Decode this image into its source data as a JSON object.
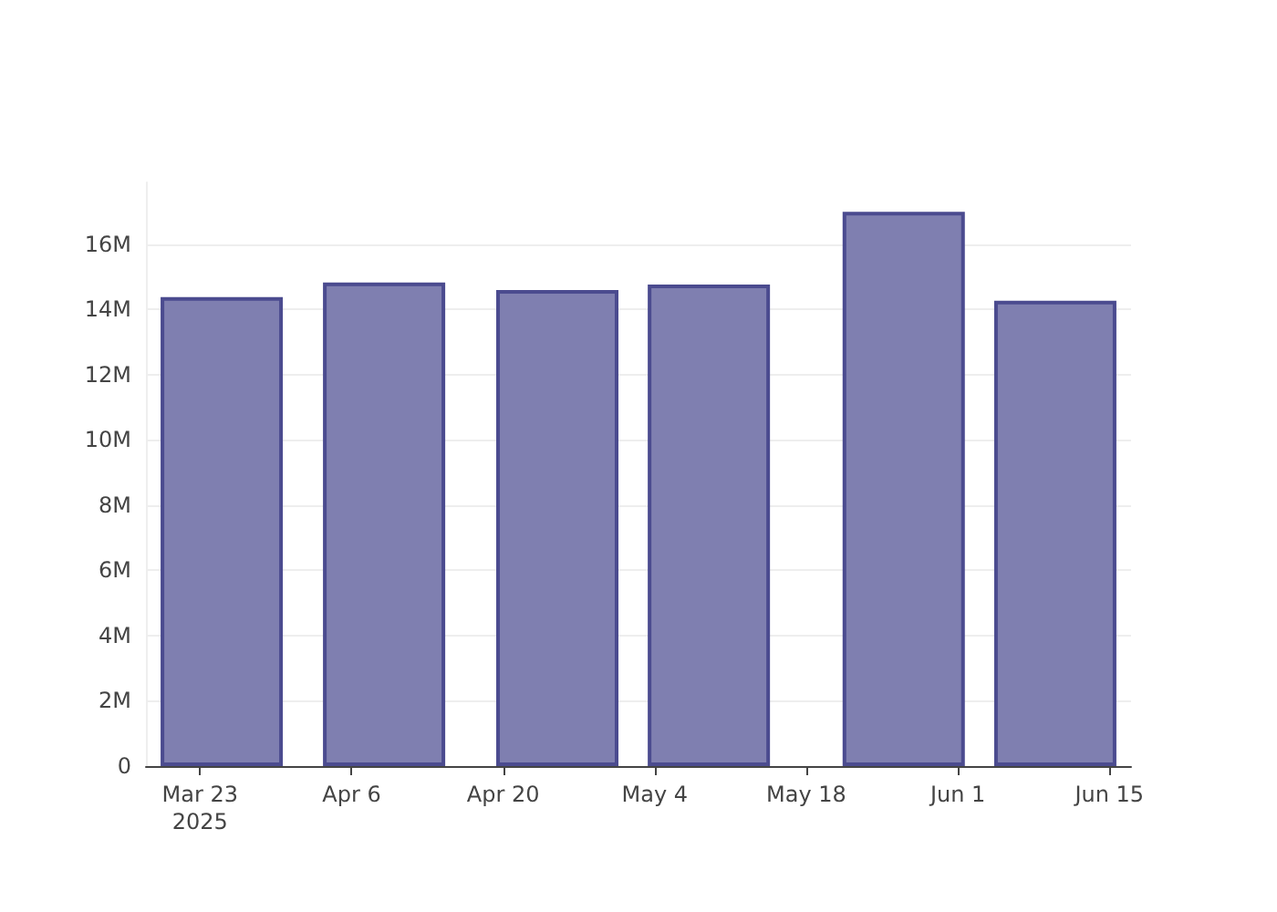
{
  "chart_data": {
    "type": "bar",
    "x": [
      "2025-03-25",
      "2025-04-09",
      "2025-04-25",
      "2025-05-09",
      "2025-05-27",
      "2025-06-10"
    ],
    "values": [
      14380000,
      14830000,
      14600000,
      14770000,
      17000000,
      14270000
    ],
    "color": "#7f7fb0",
    "xlim": [
      "2025-03-18",
      "2025-06-17"
    ],
    "xticks": [
      {
        "value": "2025-03-23",
        "label": "Mar 23\n2025"
      },
      {
        "value": "2025-04-06",
        "label": "Apr 6"
      },
      {
        "value": "2025-04-20",
        "label": "Apr 20"
      },
      {
        "value": "2025-05-04",
        "label": "May 4"
      },
      {
        "value": "2025-05-18",
        "label": "May 18"
      },
      {
        "value": "2025-06-01",
        "label": "Jun 1"
      },
      {
        "value": "2025-06-15",
        "label": "Jun 15"
      }
    ],
    "yticks": [
      {
        "value": 0,
        "label": "0"
      },
      {
        "value": 2000000,
        "label": "2M"
      },
      {
        "value": 4000000,
        "label": "4M"
      },
      {
        "value": 6000000,
        "label": "6M"
      },
      {
        "value": 8000000,
        "label": "8M"
      },
      {
        "value": 10000000,
        "label": "10M"
      },
      {
        "value": 12000000,
        "label": "12M"
      },
      {
        "value": 14000000,
        "label": "14M"
      },
      {
        "value": 16000000,
        "label": "16M"
      }
    ],
    "ylim": [
      0,
      17900000
    ],
    "grid": "y"
  }
}
